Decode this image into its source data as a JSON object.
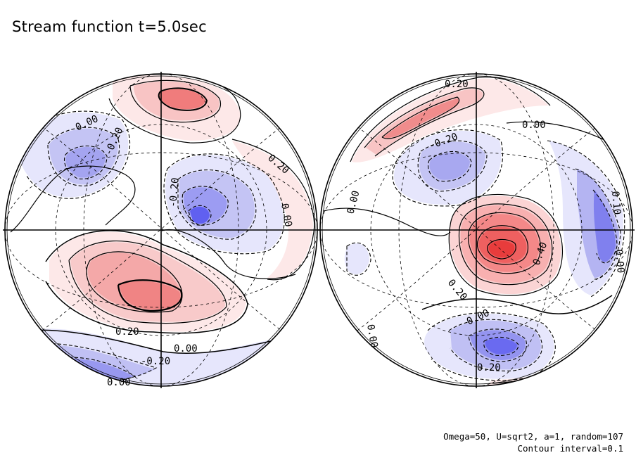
{
  "title": "Stream function t=5.0sec",
  "footer": {
    "params": "Omega=50, U=sqrt2, a=1, random=107",
    "interval": "Contour interval=0.1"
  },
  "colors": {
    "positive_strong": "#f04848",
    "positive_mid": "#f49a9a",
    "positive_light": "#fde8e8",
    "negative_strong": "#4040f0",
    "negative_mid": "#9c9cf2",
    "negative_light": "#e6e6fc",
    "line": "#000000"
  },
  "left_panel": {
    "labels": [
      "0.00",
      "-0.20",
      "0.20",
      "-0.20",
      "0.00",
      "0.20",
      "0.00",
      "-0.20",
      "0.00"
    ]
  },
  "right_panel": {
    "labels": [
      "0.20",
      "0.00",
      "-0.20",
      "0.00",
      "0.10",
      "0.40",
      "0.20",
      "0.00",
      "0.00",
      "0.00",
      "0.20"
    ]
  }
}
